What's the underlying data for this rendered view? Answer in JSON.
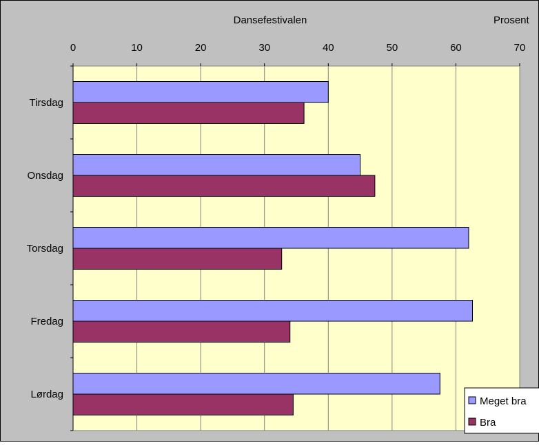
{
  "chart_data": {
    "type": "bar",
    "orientation": "horizontal",
    "title": "Dansefestivalen",
    "xlabel": "Prosent",
    "ylabel": "",
    "xlim": [
      0,
      70
    ],
    "x_ticks": [
      "0",
      "10",
      "20",
      "30",
      "40",
      "50",
      "60",
      "70"
    ],
    "x_axis_position": "top",
    "categories": [
      "Tirsdag",
      "Onsdag",
      "Torsdag",
      "Fredag",
      "Lørdag"
    ],
    "series": [
      {
        "name": "Meget bra",
        "values": [
          40,
          45,
          62,
          62.6,
          57.5
        ],
        "color": "#9999FF"
      },
      {
        "name": "Bra",
        "values": [
          36.2,
          47.3,
          32.7,
          34,
          34.5
        ],
        "color": "#993366"
      }
    ],
    "grid": true,
    "legend_position": "bottom-right",
    "plot_background": "#FFFFCC",
    "chart_background": "#C0C0C0"
  }
}
